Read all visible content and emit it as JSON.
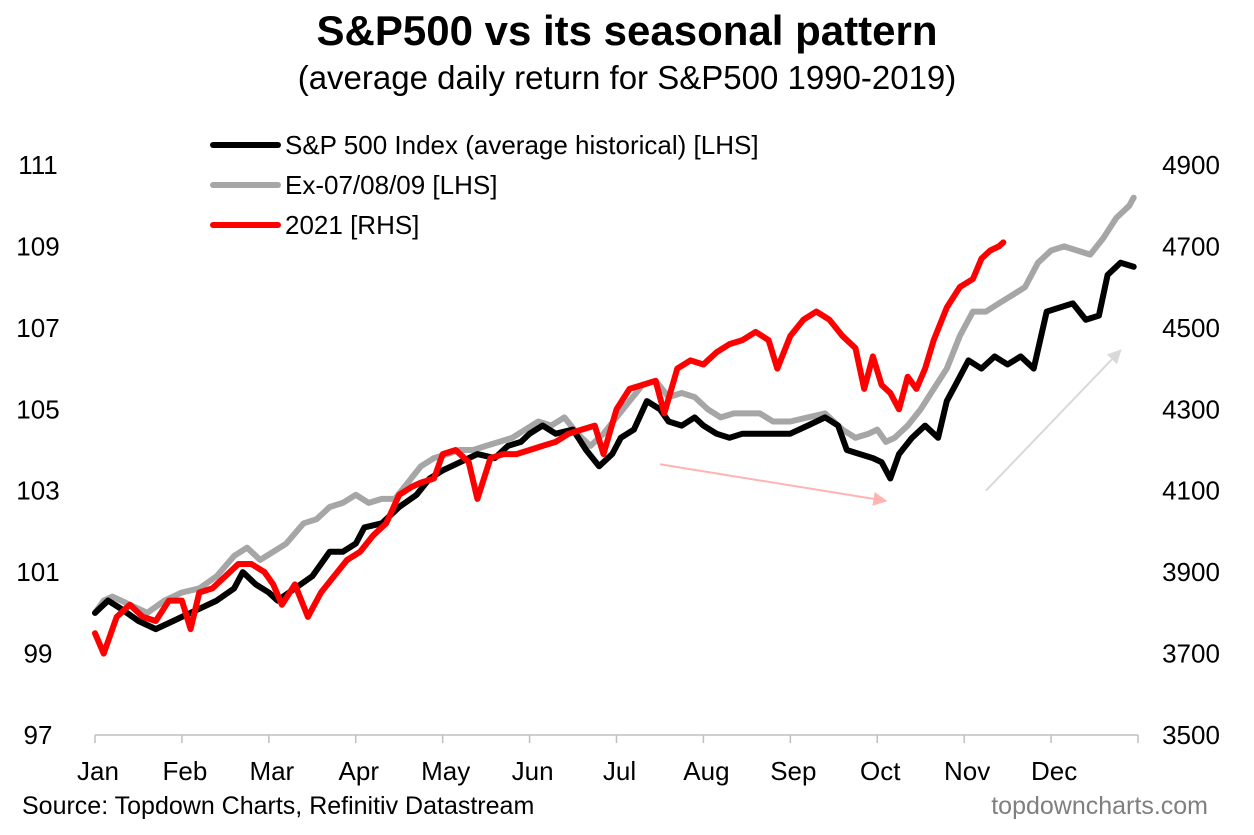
{
  "title": "S&P500 vs its seasonal pattern",
  "subtitle": "(average daily return for S&P500 1990-2019)",
  "source": "Source: Topdown Charts, Refinitiv Datastream",
  "brand": "topdowncharts.com",
  "chart_data": {
    "type": "line",
    "x_label": "",
    "categories": [
      "Jan",
      "Feb",
      "Mar",
      "Apr",
      "May",
      "Jun",
      "Jul",
      "Aug",
      "Sep",
      "Oct",
      "Nov",
      "Dec"
    ],
    "x_range": [
      0,
      12
    ],
    "y_left": {
      "min": 97,
      "max": 111,
      "ticks": [
        97,
        99,
        101,
        103,
        105,
        107,
        109,
        111
      ]
    },
    "y_right": {
      "min": 3500,
      "max": 4900,
      "ticks": [
        3500,
        3700,
        3900,
        4100,
        4300,
        4500,
        4700,
        4900
      ]
    },
    "grid": false,
    "legend_position": "top-left",
    "series": [
      {
        "name": "S&P 500 Index (average historical) [LHS]",
        "axis": "left",
        "color": "#000000",
        "points": [
          [
            0,
            100
          ],
          [
            0.15,
            100.3
          ],
          [
            0.3,
            100.1
          ],
          [
            0.5,
            99.8
          ],
          [
            0.7,
            99.6
          ],
          [
            0.9,
            99.8
          ],
          [
            1.0,
            99.9
          ],
          [
            1.2,
            100.1
          ],
          [
            1.4,
            100.3
          ],
          [
            1.6,
            100.6
          ],
          [
            1.7,
            101.0
          ],
          [
            1.85,
            100.7
          ],
          [
            2.0,
            100.5
          ],
          [
            2.1,
            100.3
          ],
          [
            2.3,
            100.6
          ],
          [
            2.5,
            100.9
          ],
          [
            2.7,
            101.5
          ],
          [
            2.85,
            101.5
          ],
          [
            3.0,
            101.7
          ],
          [
            3.1,
            102.1
          ],
          [
            3.3,
            102.2
          ],
          [
            3.5,
            102.6
          ],
          [
            3.7,
            102.9
          ],
          [
            3.85,
            103.3
          ],
          [
            4.0,
            103.5
          ],
          [
            4.2,
            103.7
          ],
          [
            4.4,
            103.9
          ],
          [
            4.6,
            103.8
          ],
          [
            4.75,
            104.1
          ],
          [
            4.9,
            104.2
          ],
          [
            5.0,
            104.4
          ],
          [
            5.15,
            104.6
          ],
          [
            5.3,
            104.4
          ],
          [
            5.5,
            104.5
          ],
          [
            5.65,
            104.0
          ],
          [
            5.8,
            103.6
          ],
          [
            5.95,
            103.9
          ],
          [
            6.05,
            104.3
          ],
          [
            6.2,
            104.5
          ],
          [
            6.35,
            105.2
          ],
          [
            6.5,
            105.0
          ],
          [
            6.6,
            104.7
          ],
          [
            6.75,
            104.6
          ],
          [
            6.9,
            104.8
          ],
          [
            7.0,
            104.6
          ],
          [
            7.15,
            104.4
          ],
          [
            7.3,
            104.3
          ],
          [
            7.45,
            104.4
          ],
          [
            7.6,
            104.4
          ],
          [
            7.8,
            104.4
          ],
          [
            8.0,
            104.4
          ],
          [
            8.2,
            104.6
          ],
          [
            8.4,
            104.8
          ],
          [
            8.55,
            104.6
          ],
          [
            8.65,
            104.0
          ],
          [
            8.8,
            103.9
          ],
          [
            8.95,
            103.8
          ],
          [
            9.05,
            103.7
          ],
          [
            9.15,
            103.3
          ],
          [
            9.25,
            103.9
          ],
          [
            9.4,
            104.3
          ],
          [
            9.55,
            104.6
          ],
          [
            9.7,
            104.3
          ],
          [
            9.8,
            105.2
          ],
          [
            9.9,
            105.6
          ],
          [
            10.05,
            106.2
          ],
          [
            10.2,
            106.0
          ],
          [
            10.35,
            106.3
          ],
          [
            10.5,
            106.1
          ],
          [
            10.65,
            106.3
          ],
          [
            10.8,
            106.0
          ],
          [
            10.95,
            107.4
          ],
          [
            11.1,
            107.5
          ],
          [
            11.25,
            107.6
          ],
          [
            11.4,
            107.2
          ],
          [
            11.55,
            107.3
          ],
          [
            11.65,
            108.3
          ],
          [
            11.8,
            108.6
          ],
          [
            11.95,
            108.5
          ]
        ]
      },
      {
        "name": "Ex-07/08/09 [LHS]",
        "axis": "left",
        "color": "#a6a6a6",
        "points": [
          [
            0,
            100.0
          ],
          [
            0.1,
            100.3
          ],
          [
            0.2,
            100.4
          ],
          [
            0.4,
            100.2
          ],
          [
            0.6,
            100.0
          ],
          [
            0.8,
            100.3
          ],
          [
            1.0,
            100.5
          ],
          [
            1.2,
            100.6
          ],
          [
            1.4,
            100.9
          ],
          [
            1.6,
            101.4
          ],
          [
            1.75,
            101.6
          ],
          [
            1.9,
            101.3
          ],
          [
            2.05,
            101.5
          ],
          [
            2.2,
            101.7
          ],
          [
            2.4,
            102.2
          ],
          [
            2.55,
            102.3
          ],
          [
            2.7,
            102.6
          ],
          [
            2.85,
            102.7
          ],
          [
            3.0,
            102.9
          ],
          [
            3.15,
            102.7
          ],
          [
            3.3,
            102.8
          ],
          [
            3.45,
            102.8
          ],
          [
            3.6,
            103.2
          ],
          [
            3.75,
            103.6
          ],
          [
            3.9,
            103.8
          ],
          [
            4.05,
            103.9
          ],
          [
            4.2,
            104.0
          ],
          [
            4.35,
            104.0
          ],
          [
            4.5,
            104.1
          ],
          [
            4.65,
            104.2
          ],
          [
            4.8,
            104.3
          ],
          [
            4.95,
            104.5
          ],
          [
            5.1,
            104.7
          ],
          [
            5.25,
            104.6
          ],
          [
            5.4,
            104.8
          ],
          [
            5.55,
            104.4
          ],
          [
            5.7,
            104.1
          ],
          [
            5.85,
            104.4
          ],
          [
            6.0,
            104.8
          ],
          [
            6.15,
            105.2
          ],
          [
            6.3,
            105.6
          ],
          [
            6.45,
            105.7
          ],
          [
            6.6,
            105.3
          ],
          [
            6.75,
            105.4
          ],
          [
            6.9,
            105.3
          ],
          [
            7.05,
            105.0
          ],
          [
            7.2,
            104.8
          ],
          [
            7.35,
            104.9
          ],
          [
            7.5,
            104.9
          ],
          [
            7.65,
            104.9
          ],
          [
            7.8,
            104.7
          ],
          [
            8.0,
            104.7
          ],
          [
            8.2,
            104.8
          ],
          [
            8.4,
            104.9
          ],
          [
            8.6,
            104.5
          ],
          [
            8.75,
            104.3
          ],
          [
            8.9,
            104.4
          ],
          [
            9.0,
            104.5
          ],
          [
            9.1,
            104.2
          ],
          [
            9.2,
            104.3
          ],
          [
            9.35,
            104.6
          ],
          [
            9.5,
            105.0
          ],
          [
            9.65,
            105.5
          ],
          [
            9.8,
            106.0
          ],
          [
            9.95,
            106.8
          ],
          [
            10.1,
            107.4
          ],
          [
            10.25,
            107.4
          ],
          [
            10.4,
            107.6
          ],
          [
            10.55,
            107.8
          ],
          [
            10.7,
            108.0
          ],
          [
            10.85,
            108.6
          ],
          [
            11.0,
            108.9
          ],
          [
            11.15,
            109.0
          ],
          [
            11.3,
            108.9
          ],
          [
            11.45,
            108.8
          ],
          [
            11.6,
            109.2
          ],
          [
            11.75,
            109.7
          ],
          [
            11.9,
            110.0
          ],
          [
            11.95,
            110.2
          ]
        ]
      },
      {
        "name": "2021 [RHS]",
        "axis": "right",
        "color": "#ff0000",
        "points": [
          [
            0,
            3750
          ],
          [
            0.1,
            3700
          ],
          [
            0.25,
            3790
          ],
          [
            0.4,
            3820
          ],
          [
            0.55,
            3790
          ],
          [
            0.7,
            3780
          ],
          [
            0.85,
            3830
          ],
          [
            1.0,
            3830
          ],
          [
            1.1,
            3760
          ],
          [
            1.2,
            3850
          ],
          [
            1.35,
            3860
          ],
          [
            1.5,
            3890
          ],
          [
            1.65,
            3920
          ],
          [
            1.8,
            3920
          ],
          [
            1.95,
            3900
          ],
          [
            2.05,
            3870
          ],
          [
            2.15,
            3820
          ],
          [
            2.3,
            3870
          ],
          [
            2.45,
            3790
          ],
          [
            2.6,
            3850
          ],
          [
            2.75,
            3890
          ],
          [
            2.9,
            3930
          ],
          [
            3.05,
            3950
          ],
          [
            3.2,
            3990
          ],
          [
            3.35,
            4020
          ],
          [
            3.5,
            4090
          ],
          [
            3.65,
            4110
          ],
          [
            3.75,
            4120
          ],
          [
            3.9,
            4130
          ],
          [
            4.0,
            4190
          ],
          [
            4.15,
            4200
          ],
          [
            4.3,
            4170
          ],
          [
            4.4,
            4080
          ],
          [
            4.55,
            4180
          ],
          [
            4.7,
            4190
          ],
          [
            4.85,
            4190
          ],
          [
            5.0,
            4200
          ],
          [
            5.15,
            4210
          ],
          [
            5.3,
            4220
          ],
          [
            5.45,
            4240
          ],
          [
            5.6,
            4250
          ],
          [
            5.75,
            4260
          ],
          [
            5.85,
            4190
          ],
          [
            6.0,
            4300
          ],
          [
            6.15,
            4350
          ],
          [
            6.3,
            4360
          ],
          [
            6.45,
            4370
          ],
          [
            6.55,
            4290
          ],
          [
            6.7,
            4400
          ],
          [
            6.85,
            4420
          ],
          [
            7.0,
            4410
          ],
          [
            7.15,
            4440
          ],
          [
            7.3,
            4460
          ],
          [
            7.45,
            4470
          ],
          [
            7.6,
            4490
          ],
          [
            7.75,
            4470
          ],
          [
            7.85,
            4400
          ],
          [
            8.0,
            4480
          ],
          [
            8.15,
            4520
          ],
          [
            8.3,
            4540
          ],
          [
            8.45,
            4520
          ],
          [
            8.6,
            4480
          ],
          [
            8.75,
            4450
          ],
          [
            8.85,
            4350
          ],
          [
            8.95,
            4430
          ],
          [
            9.05,
            4360
          ],
          [
            9.15,
            4340
          ],
          [
            9.25,
            4300
          ],
          [
            9.35,
            4380
          ],
          [
            9.45,
            4350
          ],
          [
            9.55,
            4400
          ],
          [
            9.65,
            4470
          ],
          [
            9.8,
            4550
          ],
          [
            9.95,
            4600
          ],
          [
            10.1,
            4620
          ],
          [
            10.2,
            4670
          ],
          [
            10.3,
            4690
          ],
          [
            10.4,
            4700
          ],
          [
            10.45,
            4710
          ]
        ]
      }
    ],
    "annotations": [
      {
        "type": "arrow",
        "color": "#ffb3b3",
        "from": [
          6.5,
          4165
        ],
        "to": [
          9.1,
          4075
        ]
      },
      {
        "type": "arrow",
        "color": "#d9d9d9",
        "from": [
          10.25,
          4100
        ],
        "to": [
          11.8,
          4445
        ]
      }
    ]
  }
}
